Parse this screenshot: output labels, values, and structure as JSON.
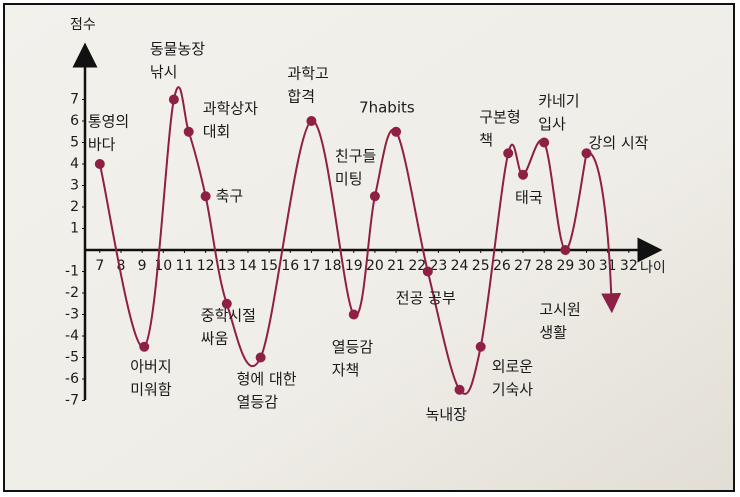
{
  "chart_data": {
    "type": "line",
    "y_label": "점수",
    "x_label": "나이",
    "xlim": [
      6.3,
      33
    ],
    "ylim": [
      -7.5,
      8.5
    ],
    "xticks": [
      7,
      8,
      9,
      10,
      11,
      12,
      13,
      14,
      15,
      16,
      17,
      18,
      19,
      20,
      21,
      22,
      23,
      24,
      25,
      26,
      27,
      28,
      29,
      30,
      31,
      32
    ],
    "yticks": [
      -7,
      -6,
      -5,
      -4,
      -3,
      -2,
      -1,
      1,
      2,
      3,
      4,
      5,
      6,
      7
    ],
    "series": [
      {
        "color": "#8e1f45",
        "x": [
          7,
          9.1,
          10.5,
          11.2,
          12,
          13,
          14.6,
          17,
          19,
          20,
          21,
          22.5,
          24,
          25,
          26.3,
          27,
          28,
          29,
          30
        ],
        "values": [
          4,
          -4.5,
          7,
          5.5,
          2.5,
          -2.5,
          -5,
          6,
          -3,
          2.5,
          5.5,
          -1,
          -6.5,
          -4.5,
          4.5,
          3.5,
          5,
          0,
          4.5
        ],
        "annotations": [
          [
            "통영의",
            "바다"
          ],
          [
            "아버지",
            "미워함"
          ],
          [
            "동물농장",
            "낚시"
          ],
          [
            "과학상자",
            "대회"
          ],
          [
            "축구"
          ],
          [
            "중학시절",
            "싸움"
          ],
          [
            "형에 대한",
            "열등감"
          ],
          [
            "과학고",
            "합격"
          ],
          [
            "열등감",
            "자책"
          ],
          [
            "친구들",
            "미팅"
          ],
          [
            "7habits"
          ],
          [
            "전공 공부"
          ],
          [
            "녹내장"
          ],
          [
            "외로운",
            "기숙사"
          ],
          [
            "구본형",
            "책"
          ],
          [
            "태국"
          ],
          [
            "카네기",
            "입사"
          ],
          [
            "고시원",
            "생활"
          ],
          [
            "강의 시작"
          ]
        ]
      }
    ]
  }
}
